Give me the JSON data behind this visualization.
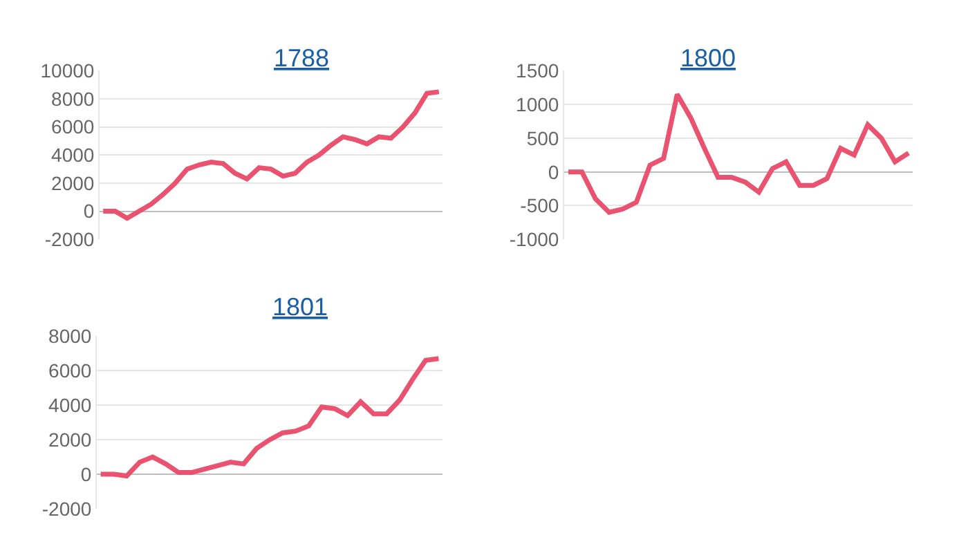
{
  "chart_data": [
    {
      "type": "line",
      "title": "1788",
      "categories": [
        null,
        null,
        null,
        null,
        null,
        null,
        null,
        null,
        null,
        null,
        null,
        null,
        null,
        null,
        null,
        null,
        null,
        null,
        null,
        null,
        null,
        null,
        null,
        null,
        null,
        null,
        null,
        null,
        null
      ],
      "series": [
        {
          "color": "#e9536f",
          "values": [
            0,
            0,
            -500,
            0,
            500,
            1200,
            2000,
            3000,
            3300,
            3500,
            3400,
            2700,
            2300,
            3100,
            3000,
            2500,
            2700,
            3500,
            4000,
            4700,
            5300,
            5100,
            4800,
            5300,
            5200,
            6000,
            7000,
            8400,
            8500
          ]
        }
      ],
      "ylim": [
        -2000,
        10000
      ],
      "yticks": [
        -2000,
        0,
        2000,
        4000,
        6000,
        8000,
        10000
      ],
      "grid": "y",
      "tick_labels": "y",
      "marker": "none"
    },
    {
      "type": "line",
      "title": "1800",
      "categories": [
        null,
        null,
        null,
        null,
        null,
        null,
        null,
        null,
        null,
        null,
        null,
        null,
        null,
        null,
        null,
        null,
        null,
        null,
        null,
        null,
        null,
        null,
        null,
        null,
        null,
        null
      ],
      "series": [
        {
          "color": "#e9536f",
          "values": [
            0,
            0,
            -400,
            -600,
            -550,
            -450,
            100,
            200,
            1150,
            800,
            350,
            -80,
            -80,
            -150,
            -300,
            50,
            150,
            -200,
            -200,
            -100,
            350,
            250,
            700,
            500,
            150,
            280
          ]
        }
      ],
      "ylim": [
        -1000,
        1500
      ],
      "yticks": [
        -1000,
        -500,
        0,
        500,
        1000,
        1500
      ],
      "grid": "y",
      "tick_labels": "y",
      "marker": "none"
    },
    {
      "type": "line",
      "title": "1801",
      "categories": [
        null,
        null,
        null,
        null,
        null,
        null,
        null,
        null,
        null,
        null,
        null,
        null,
        null,
        null,
        null,
        null,
        null,
        null,
        null,
        null,
        null,
        null,
        null,
        null,
        null,
        null,
        null
      ],
      "series": [
        {
          "color": "#e9536f",
          "values": [
            0,
            0,
            -100,
            700,
            1000,
            600,
            100,
            100,
            300,
            500,
            700,
            600,
            1500,
            2000,
            2400,
            2500,
            2800,
            3900,
            3800,
            3400,
            4200,
            3500,
            3500,
            4300,
            5500,
            6600,
            6700
          ]
        }
      ],
      "ylim": [
        -2000,
        8000
      ],
      "yticks": [
        -2000,
        0,
        2000,
        4000,
        6000,
        8000
      ],
      "grid": "y",
      "tick_labels": "y",
      "marker": "none"
    }
  ]
}
